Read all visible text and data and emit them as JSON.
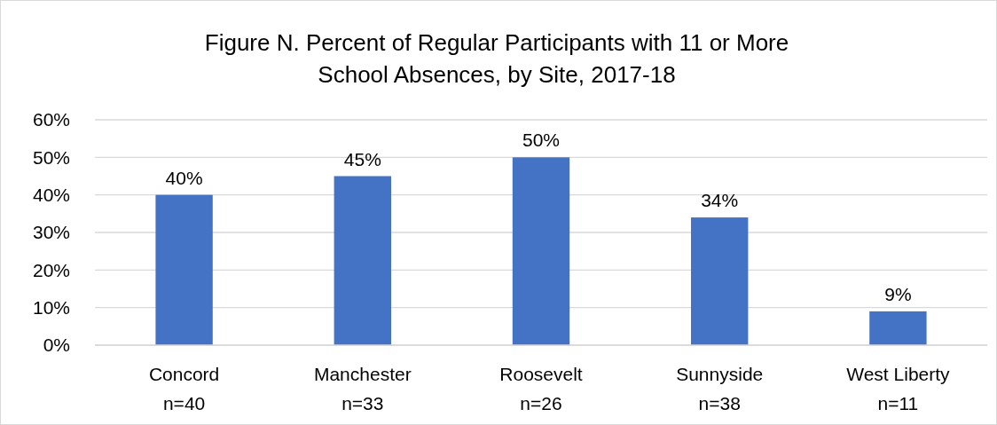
{
  "chart_data": {
    "type": "bar",
    "title": "Figure N. Percent of Regular Participants with 11 or More\nSchool Absences, by Site, 2017-18",
    "categories": [
      "Concord\nn=40",
      "Manchester\nn=33",
      "Roosevelt\nn=26",
      "Sunnyside\nn=38",
      "West Liberty\nn=11"
    ],
    "values": [
      40,
      45,
      50,
      34,
      9
    ],
    "value_labels": [
      "40%",
      "45%",
      "50%",
      "34%",
      "9%"
    ],
    "color": "#4472c4",
    "ylim": [
      0,
      60
    ],
    "yticks": [
      {
        "value": 0,
        "label": "0%"
      },
      {
        "value": 10,
        "label": "10%"
      },
      {
        "value": 20,
        "label": "20%"
      },
      {
        "value": 30,
        "label": "30%"
      },
      {
        "value": 40,
        "label": "40%"
      },
      {
        "value": 50,
        "label": "50%"
      },
      {
        "value": 60,
        "label": "60%"
      }
    ],
    "grid": "y"
  }
}
